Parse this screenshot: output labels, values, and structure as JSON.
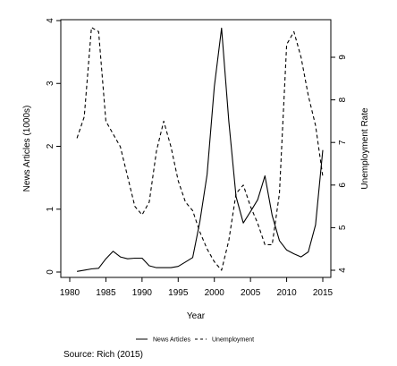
{
  "chart_data": {
    "type": "line",
    "xlabel": "Year",
    "xlim": [
      1980,
      2015
    ],
    "xticks": [
      1980,
      1985,
      1990,
      1995,
      2000,
      2005,
      2010,
      2015
    ],
    "y_left": {
      "label": "News Articles (1000s)",
      "lim": [
        0,
        4
      ],
      "ticks": [
        0,
        1,
        2,
        3,
        4
      ]
    },
    "y_right": {
      "label": "Unemployment Rate",
      "lim": [
        4,
        9
      ],
      "ticks": [
        4,
        5,
        6,
        7,
        8,
        9
      ]
    },
    "legend": {
      "position": "bottom-center"
    },
    "series": [
      {
        "name": "News Articles",
        "axis": "left",
        "line_style": "solid",
        "x": [
          1981,
          1982,
          1983,
          1984,
          1985,
          1986,
          1987,
          1988,
          1989,
          1990,
          1991,
          1992,
          1993,
          1994,
          1995,
          1996,
          1997,
          1998,
          1999,
          2000,
          2001,
          2002,
          2003,
          2004,
          2005,
          2006,
          2007,
          2008,
          2009,
          2010,
          2011,
          2012,
          2013,
          2014,
          2015
        ],
        "values": [
          0.01,
          0.03,
          0.05,
          0.06,
          0.21,
          0.33,
          0.24,
          0.21,
          0.22,
          0.22,
          0.1,
          0.07,
          0.07,
          0.07,
          0.09,
          0.16,
          0.23,
          0.8,
          1.55,
          2.95,
          3.88,
          2.4,
          1.2,
          0.78,
          0.96,
          1.15,
          1.53,
          0.9,
          0.5,
          0.35,
          0.29,
          0.24,
          0.32,
          0.75,
          1.94
        ]
      },
      {
        "name": "Unemployment",
        "axis": "right",
        "line_style": "dashed",
        "x": [
          1981,
          1982,
          1983,
          1984,
          1985,
          1986,
          1987,
          1988,
          1989,
          1990,
          1991,
          1992,
          1993,
          1994,
          1995,
          1996,
          1997,
          1998,
          1999,
          2000,
          2001,
          2002,
          2003,
          2004,
          2005,
          2006,
          2007,
          2008,
          2009,
          2010,
          2011,
          2012,
          2013,
          2014,
          2015
        ],
        "values": [
          7.1,
          7.6,
          9.7,
          9.6,
          7.5,
          7.2,
          6.9,
          6.2,
          5.5,
          5.3,
          5.6,
          6.8,
          7.5,
          6.9,
          6.1,
          5.6,
          5.4,
          4.9,
          4.5,
          4.2,
          4.0,
          4.7,
          5.8,
          6.0,
          5.5,
          5.1,
          4.6,
          4.6,
          5.8,
          9.3,
          9.6,
          9.0,
          8.1,
          7.4,
          6.2
        ]
      }
    ]
  },
  "caption": "Source: Rich (2015)"
}
